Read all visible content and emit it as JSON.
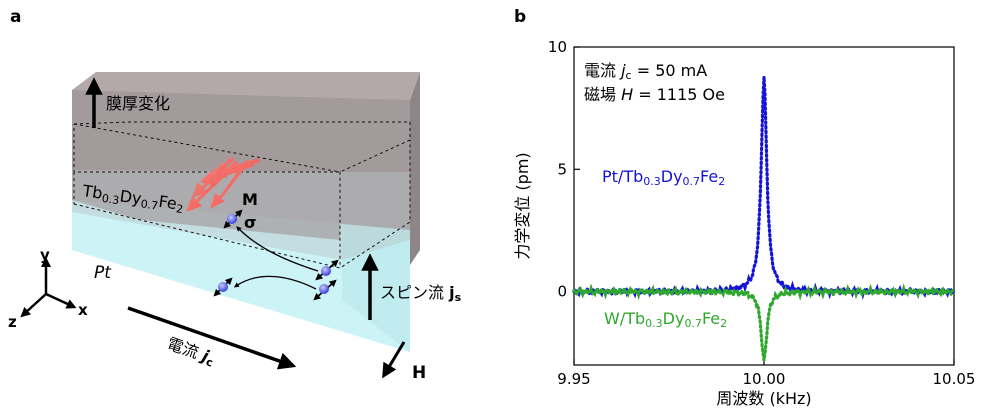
{
  "panel_a": {
    "letter": "a",
    "thickness_change": "膜厚変化",
    "magnet_label": {
      "base": "Tb",
      "sub1": "0.3",
      "mid": "Dy",
      "sub2": "0.7",
      "end": "Fe",
      "sub3": "2"
    },
    "pt_label": "Pt",
    "m_label": "M",
    "sigma_label": "σ",
    "spin_current": {
      "text": "スピン流 ",
      "symbol": "j",
      "sub": "s"
    },
    "current": {
      "text": "電流 ",
      "symbol": "j",
      "sub": "c"
    },
    "field": "H",
    "axes": {
      "y": "y",
      "x": "x",
      "z": "z"
    },
    "colors": {
      "magnet": "#a79b9b",
      "pt": "#c8f3f6",
      "arrow_red": "#f06a64",
      "electron": "#5b63e8"
    }
  },
  "panel_b": {
    "letter": "b",
    "annotation_line1": {
      "prefix": "電流 ",
      "sym": "j",
      "sub": "c",
      "rest": " = 50 mA"
    },
    "annotation_line2": {
      "prefix": "磁場 ",
      "sym": "H",
      "rest": " = 1115 Oe"
    },
    "series1_label": "Pt/Tb0.3Dy0.7Fe2",
    "series2_label": "W/Tb0.3Dy0.7Fe2",
    "series1_parts": {
      "a": "Pt/Tb",
      "s1": "0.3",
      "b": "Dy",
      "s2": "0.7",
      "c": "Fe",
      "s3": "2"
    },
    "series2_parts": {
      "a": "W/Tb",
      "s1": "0.3",
      "b": "Dy",
      "s2": "0.7",
      "c": "Fe",
      "s3": "2"
    },
    "colors": {
      "series1": "#1414d8",
      "series2": "#2fa82f"
    }
  },
  "chart_data": {
    "type": "line",
    "xlabel": "周波数 (kHz)",
    "ylabel": "力学変位 (pm)",
    "xlim": [
      9.95,
      10.05
    ],
    "ylim": [
      -3,
      10
    ],
    "xticks": [
      "9.95",
      "10.00",
      "10.05"
    ],
    "yticks": [
      "0",
      "5",
      "10"
    ],
    "grid": false,
    "resonance_x": 10.0,
    "series": [
      {
        "name": "Pt/Tb0.3Dy0.7Fe2",
        "peak_x": 10.0,
        "peak_y": 8.7,
        "baseline": 0.0,
        "style": "dotted"
      },
      {
        "name": "W/Tb0.3Dy0.7Fe2",
        "peak_x": 10.0,
        "peak_y": -2.8,
        "baseline": 0.0,
        "style": "dotted"
      }
    ]
  }
}
